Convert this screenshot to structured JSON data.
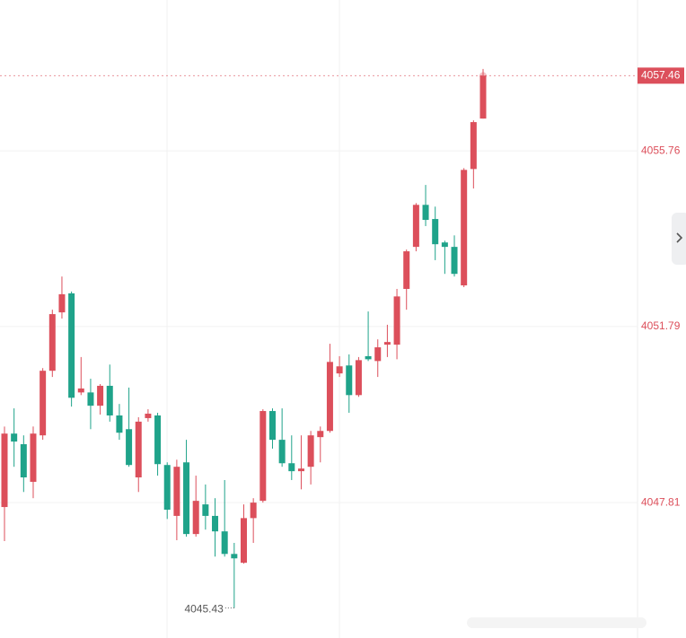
{
  "chart_data": {
    "type": "candlestick",
    "up_color": "#dc4f5b",
    "down_color": "#1fa38a",
    "open": [
      4047.71,
      4049.37,
      4049.13,
      4048.28,
      4049.33,
      4050.79,
      4052.11,
      4052.54,
      4050.3,
      4050.3,
      4050.0,
      4050.45,
      4049.78,
      4049.47,
      4048.38,
      4049.72,
      4049.78,
      4048.66,
      4047.51,
      4048.72,
      4047.1,
      4047.77,
      4047.51,
      4047.16,
      4046.65,
      4046.45,
      4047.46,
      4047.85,
      4049.88,
      4049.23,
      4048.7,
      4048.52,
      4048.62,
      4049.29,
      4049.43,
      4050.73,
      4050.91,
      4050.24,
      4051.12,
      4051.01,
      4051.38,
      4051.38,
      4052.64,
      4053.59,
      4054.54,
      4054.22,
      4053.69,
      4053.59,
      4052.72,
      4055.35,
      4056.49
    ],
    "high": [
      4049.53,
      4049.94,
      4049.33,
      4049.53,
      4050.85,
      4052.17,
      4052.92,
      4052.58,
      4051.1,
      4050.61,
      4050.49,
      4050.93,
      4050.04,
      4050.41,
      4049.74,
      4049.92,
      4049.84,
      4048.72,
      4048.78,
      4049.23,
      4048.42,
      4048.22,
      4047.91,
      4048.32,
      4046.9,
      4047.77,
      4047.91,
      4049.92,
      4049.94,
      4049.94,
      4049.33,
      4049.33,
      4049.43,
      4049.53,
      4051.4,
      4051.12,
      4051.16,
      4051.1,
      4052.13,
      4051.5,
      4051.83,
      4052.64,
      4053.53,
      4054.58,
      4054.99,
      4054.5,
      4053.73,
      4053.85,
      4055.37,
      4056.45,
      4057.61
    ],
    "low": [
      4046.94,
      4048.62,
      4048.05,
      4047.91,
      4049.23,
      4050.65,
      4051.97,
      4049.98,
      4050.24,
      4049.47,
      4049.8,
      4049.64,
      4049.23,
      4048.62,
      4048.05,
      4049.64,
      4048.42,
      4047.44,
      4046.96,
      4047.04,
      4047.04,
      4047.2,
      4046.59,
      4046.59,
      4045.43,
      4046.43,
      4046.9,
      4047.81,
      4049.03,
      4048.62,
      4048.32,
      4048.11,
      4048.22,
      4048.72,
      4049.39,
      4050.65,
      4049.84,
      4050.2,
      4051.01,
      4050.65,
      4051.1,
      4051.05,
      4052.17,
      4053.49,
      4054.06,
      4053.29,
      4052.98,
      4052.92,
      4052.68,
      4054.91,
      4056.49
    ],
    "close": [
      4049.37,
      4049.19,
      4048.38,
      4049.37,
      4050.79,
      4052.07,
      4052.52,
      4050.18,
      4050.39,
      4050.0,
      4050.45,
      4049.78,
      4049.39,
      4048.66,
      4049.64,
      4049.82,
      4048.68,
      4047.65,
      4048.62,
      4047.1,
      4047.85,
      4047.51,
      4047.16,
      4046.65,
      4046.55,
      4047.46,
      4047.81,
      4049.88,
      4049.23,
      4048.7,
      4048.52,
      4048.58,
      4049.33,
      4049.43,
      4050.99,
      4050.89,
      4050.24,
      4051.03,
      4051.05,
      4051.32,
      4051.44,
      4052.47,
      4053.49,
      4054.54,
      4054.2,
      4053.65,
      4053.59,
      4052.98,
      4055.33,
      4056.41,
      4057.46
    ],
    "ylim": [
      4044.75,
      4059.17
    ],
    "yticks": [
      4055.76,
      4051.79,
      4047.81
    ],
    "grid": true,
    "last_price": 4057.46,
    "low_annotation": 4045.43
  }
}
